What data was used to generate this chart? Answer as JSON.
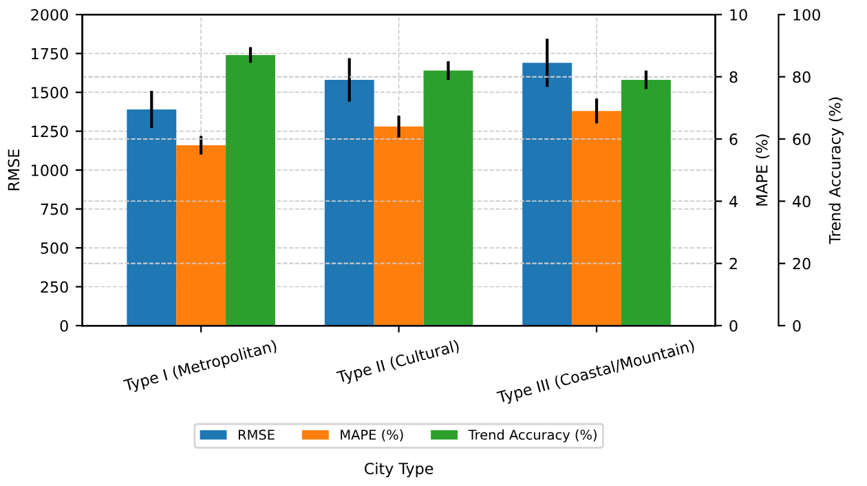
{
  "chart_data": {
    "type": "bar",
    "xlabel": "City Type",
    "ylabel": "RMSE",
    "y2label": "MAPE (%)",
    "y3label": "Trend Accuracy (%)",
    "categories": [
      "Type I (Metropolitan)",
      "Type II (Cultural)",
      "Type III (Coastal/Mountain)"
    ],
    "series": [
      {
        "name": "RMSE",
        "color": "#1f77b4",
        "values": [
          1390,
          1580,
          1690
        ],
        "errors": [
          120,
          140,
          155
        ]
      },
      {
        "name": "MAPE (%)",
        "color": "#ff7f0e",
        "axis": "y2",
        "values": [
          5.8,
          6.4,
          6.9
        ],
        "errors": [
          0.3,
          0.35,
          0.4
        ]
      },
      {
        "name": "Trend Accuracy (%)",
        "color": "#2ca02c",
        "axis": "y3",
        "values": [
          87,
          82,
          79
        ],
        "errors": [
          2.5,
          3,
          3
        ]
      }
    ],
    "ylim": [
      0,
      2000
    ],
    "yticks": [
      0,
      250,
      500,
      750,
      1000,
      1250,
      1500,
      1750,
      2000
    ],
    "y2lim": [
      0,
      10
    ],
    "y2ticks": [
      0,
      2,
      4,
      6,
      8,
      10
    ],
    "y3lim": [
      0,
      100
    ],
    "y3ticks": [
      0,
      20,
      40,
      60,
      80,
      100
    ],
    "grid": true,
    "legend": "bottom"
  }
}
